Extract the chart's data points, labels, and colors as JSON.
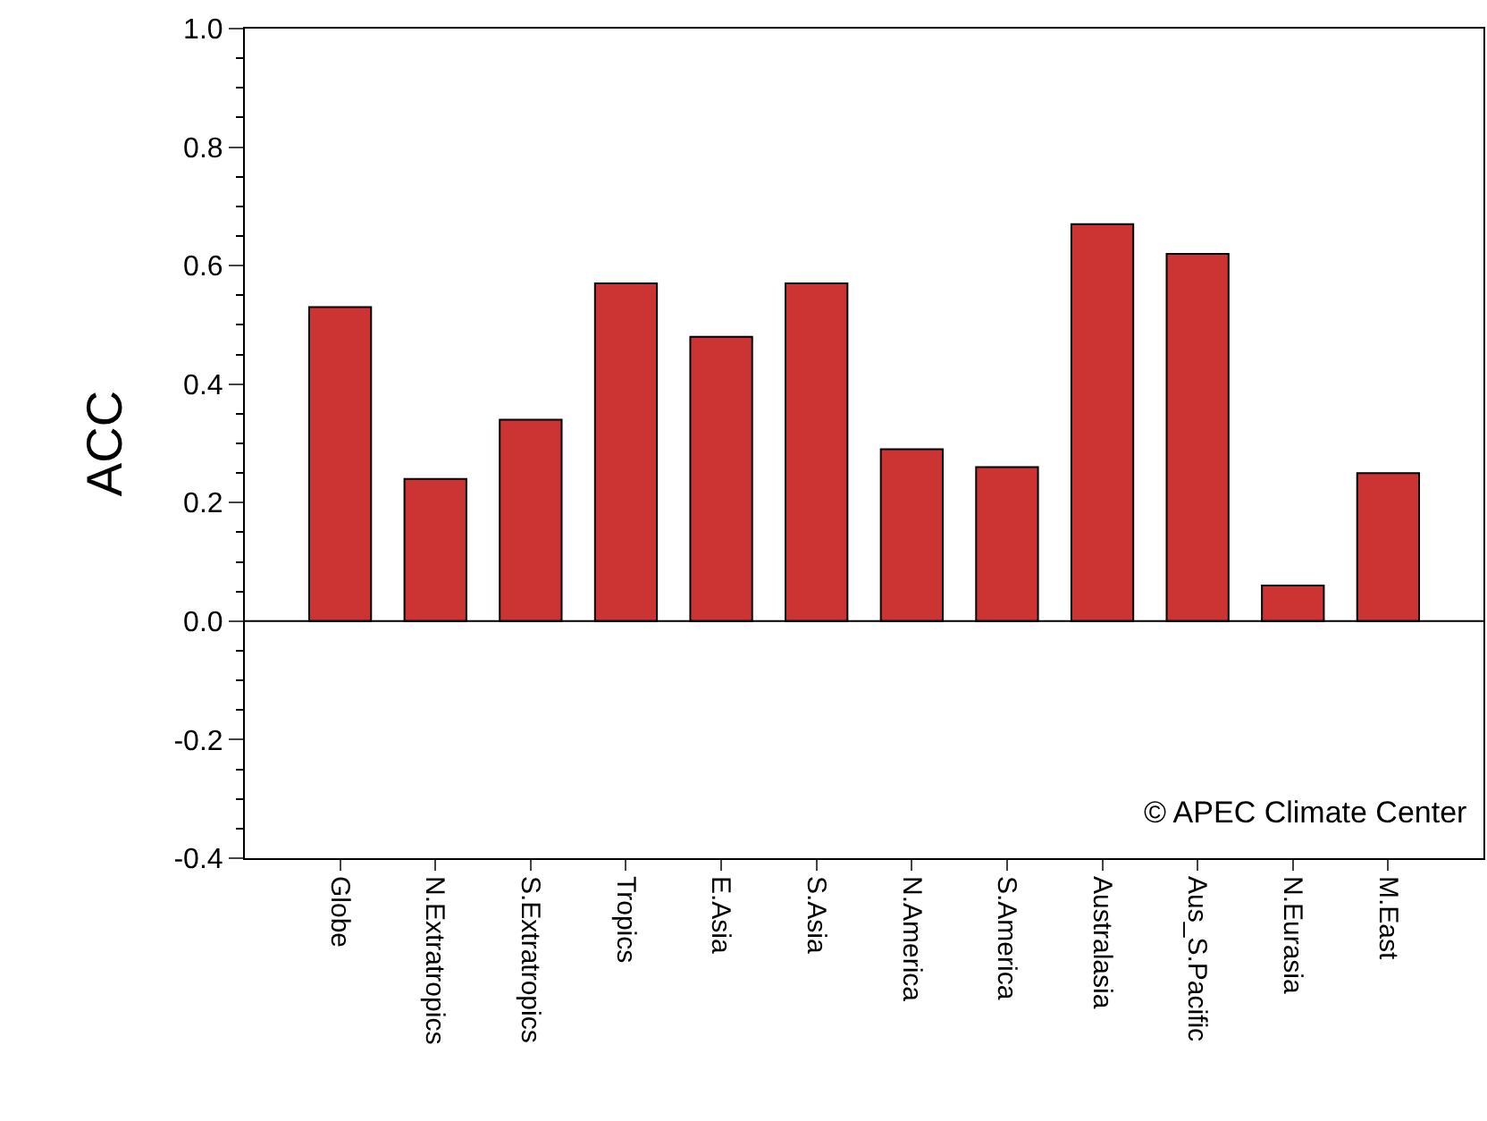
{
  "chart_data": {
    "type": "bar",
    "ylabel": "ACC",
    "categories": [
      "Globe",
      "N.Extratropics",
      "S.Extratropics",
      "Tropics",
      "E.Asia",
      "S.Asia",
      "N.America",
      "S.America",
      "Australasia",
      "Aus_S.Pacific",
      "N.Eurasia",
      "M.East"
    ],
    "values": [
      0.53,
      0.24,
      0.34,
      0.57,
      0.48,
      0.57,
      0.29,
      0.26,
      0.67,
      0.62,
      0.06,
      0.25
    ],
    "color": "#cc3333",
    "ylim": [
      -0.4,
      1.0
    ],
    "yticks": [
      {
        "value": -0.4,
        "label": "-0.4"
      },
      {
        "value": -0.2,
        "label": "-0.2"
      },
      {
        "value": 0,
        "label": "0.0"
      },
      {
        "value": 0.2,
        "label": "0.2"
      },
      {
        "value": 0.4,
        "label": "0.4"
      },
      {
        "value": 0.6,
        "label": "0.6"
      },
      {
        "value": 0.8,
        "label": "0.8"
      },
      {
        "value": 1.0,
        "label": "1.0"
      }
    ],
    "ref_lines": [
      {
        "axis": "y",
        "value": 0,
        "color": "#000000"
      }
    ],
    "annotations": [
      "© APEC Climate Center"
    ]
  }
}
